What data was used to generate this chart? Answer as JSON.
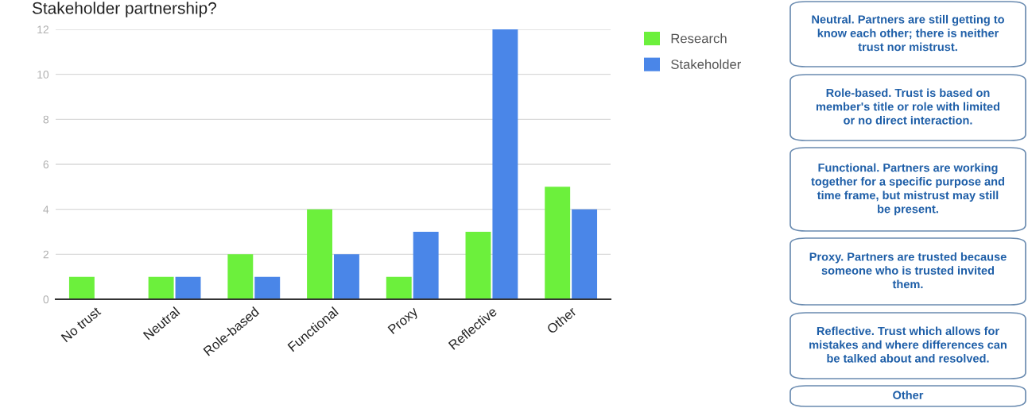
{
  "chart_data": {
    "type": "bar",
    "title": "Stakeholder partnership?",
    "categories": [
      "No trust",
      "Neutral",
      "Role-based",
      "Functional",
      "Proxy",
      "Reflective",
      "Other"
    ],
    "series": [
      {
        "name": "Research",
        "color": "#6cf03c",
        "values": [
          1,
          1,
          2,
          4,
          1,
          3,
          5
        ]
      },
      {
        "name": "Stakeholder",
        "color": "#4a86e8",
        "values": [
          0,
          1,
          1,
          2,
          3,
          12,
          4
        ]
      }
    ],
    "ylim": [
      0,
      12
    ],
    "yticks": [
      0,
      2,
      4,
      6,
      8,
      10,
      12
    ],
    "grid": "y",
    "legend": "top right",
    "annotations": [
      "Neutral. Partners are still getting to\nknow each other; there is neither\ntrust nor mistrust.",
      "Role-based. Trust is based on\nmember's title or role with limited\nor no direct interaction.",
      "Functional. Partners are working\ntogether for a specific purpose and\ntime frame, but mistrust may still\nbe present.",
      "Proxy. Partners are trusted because\nsomeone who is trusted invited\nthem.",
      "Reflective. Trust which allows for\nmistakes and where differences can\nbe talked about and resolved.",
      "Other"
    ]
  }
}
